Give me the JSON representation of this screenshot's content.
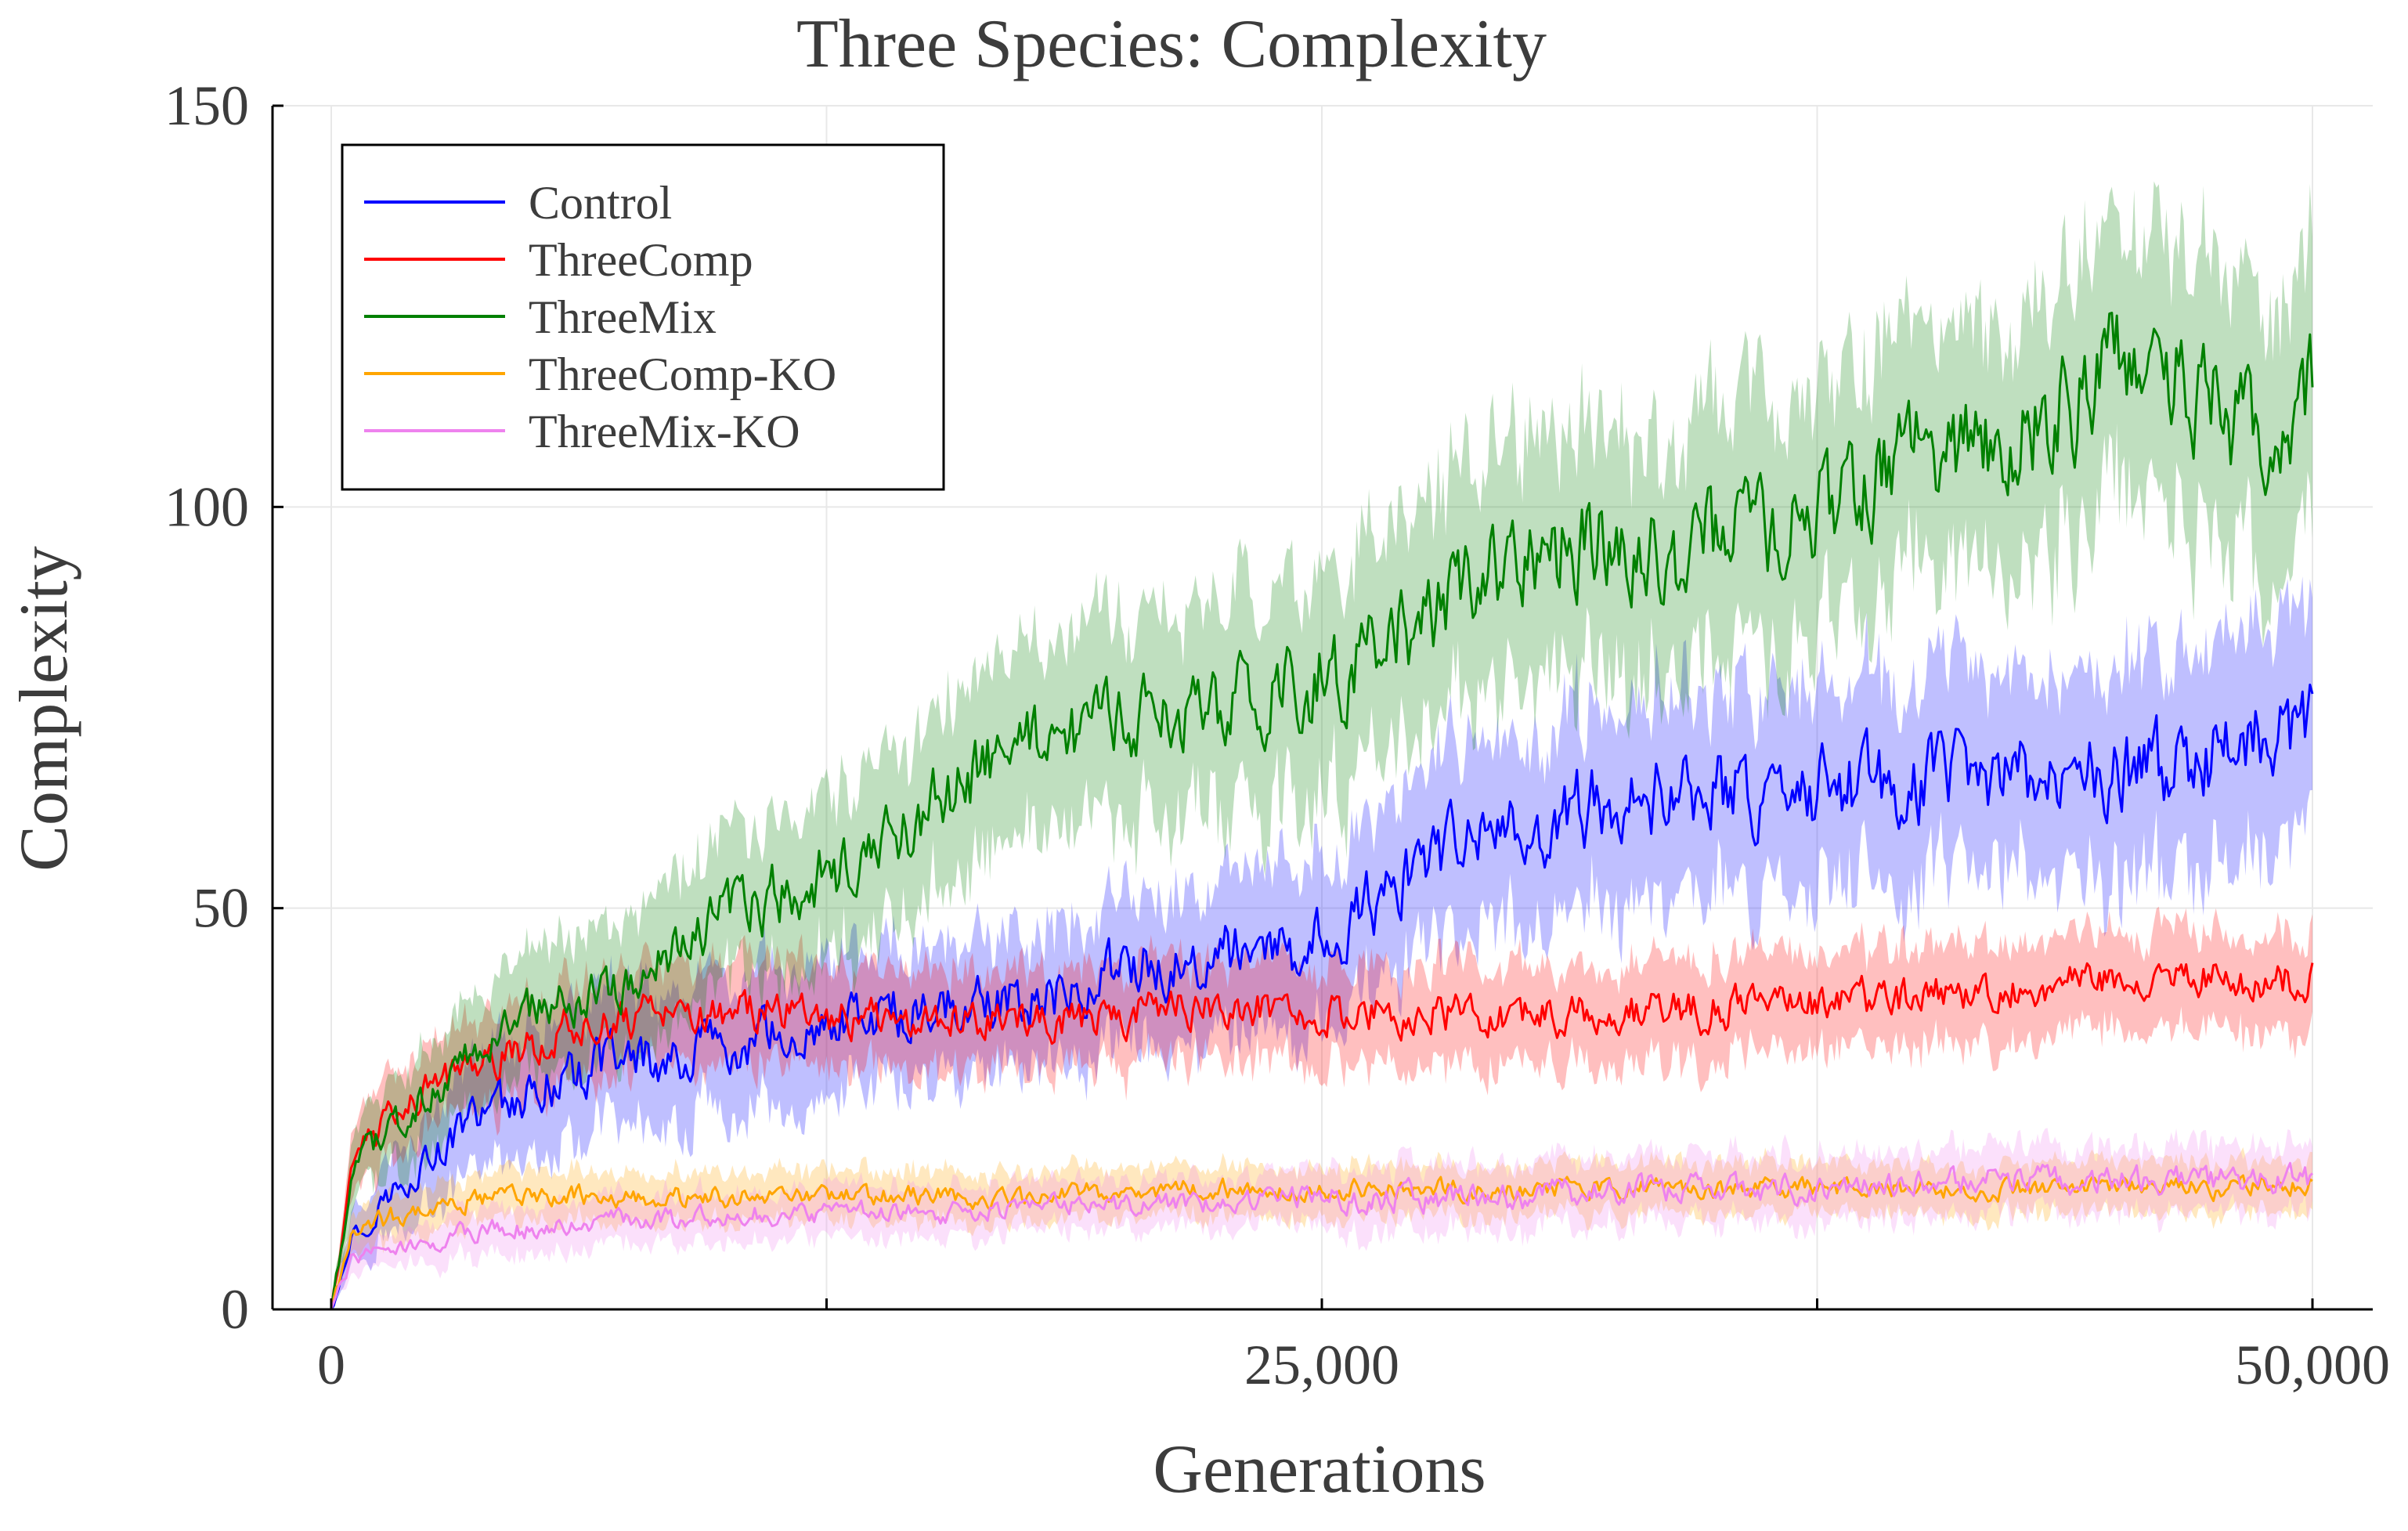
{
  "chart_data": {
    "type": "line",
    "title": "Three Species: Complexity",
    "xlabel": "Generations",
    "ylabel": "Complexity",
    "xlim": [
      0,
      50000
    ],
    "ylim": [
      0,
      150
    ],
    "x_ticks": [
      0,
      25000,
      50000
    ],
    "x_tick_labels": [
      "0",
      "25,000",
      "50,000"
    ],
    "x_minor_ticks": [
      12500,
      37500
    ],
    "y_ticks": [
      0,
      50,
      100,
      150
    ],
    "y_tick_labels": [
      "0",
      "50",
      "100",
      "150"
    ],
    "grid": true,
    "legend_position": "top-left",
    "series": [
      {
        "name": "Control",
        "color": "#0000ff",
        "x": [
          0,
          500,
          1000,
          2000,
          3000,
          4000,
          5000,
          6000,
          7000,
          8000,
          10000,
          12000,
          14000,
          16000,
          18000,
          20000,
          22000,
          24000,
          26000,
          28000,
          30000,
          32000,
          34000,
          36000,
          38000,
          40000,
          42000,
          44000,
          46000,
          48000,
          50000
        ],
        "mean": [
          0,
          9,
          12,
          17,
          21,
          25,
          27,
          29,
          30,
          31,
          33,
          35,
          37,
          38,
          39,
          42,
          44,
          44,
          50,
          56,
          60,
          63,
          64,
          65,
          65,
          66,
          66,
          67,
          67,
          70,
          72
        ],
        "band": [
          0,
          3,
          4,
          5,
          6,
          7,
          7,
          8,
          8,
          8,
          8,
          8,
          8,
          8,
          8,
          9,
          9,
          10,
          10,
          11,
          11,
          12,
          12,
          12,
          12,
          12,
          12,
          12,
          13,
          13,
          13
        ]
      },
      {
        "name": "ThreeComp",
        "color": "#ff0000",
        "x": [
          0,
          500,
          1000,
          2000,
          3000,
          4000,
          5000,
          6000,
          7000,
          8000,
          10000,
          12000,
          14000,
          16000,
          18000,
          20000,
          22000,
          24000,
          26000,
          28000,
          30000,
          32000,
          34000,
          36000,
          38000,
          40000,
          42000,
          44000,
          46000,
          48000,
          50000
        ],
        "mean": [
          0,
          16,
          21,
          26,
          29,
          31,
          33,
          35,
          36,
          37,
          37,
          37,
          36,
          36,
          36,
          37,
          38,
          38,
          37,
          37,
          36,
          37,
          37,
          38,
          38,
          39,
          40,
          41,
          41,
          41,
          41
        ],
        "band": [
          0,
          4,
          5,
          5,
          5,
          6,
          6,
          6,
          6,
          6,
          6,
          6,
          6,
          6,
          6,
          6,
          6,
          6,
          6,
          6,
          6,
          6,
          6,
          6,
          6,
          6,
          6,
          6,
          6,
          6,
          6
        ]
      },
      {
        "name": "ThreeMix",
        "color": "#008000",
        "x": [
          0,
          500,
          1000,
          2000,
          3000,
          4000,
          5000,
          6000,
          7000,
          8000,
          10000,
          12000,
          14000,
          16000,
          18000,
          20000,
          22000,
          24000,
          26000,
          28000,
          30000,
          32000,
          34000,
          36000,
          38000,
          40000,
          42000,
          44000,
          46000,
          48000,
          50000
        ],
        "mean": [
          0,
          15,
          20,
          25,
          29,
          33,
          37,
          38,
          39,
          42,
          49,
          53,
          58,
          66,
          71,
          73,
          75,
          77,
          81,
          87,
          93,
          97,
          94,
          97,
          101,
          106,
          108,
          114,
          120,
          110,
          115
        ],
        "band": [
          0,
          4,
          5,
          6,
          6,
          7,
          7,
          8,
          8,
          8,
          9,
          10,
          10,
          11,
          11,
          12,
          12,
          13,
          13,
          14,
          14,
          15,
          15,
          15,
          15,
          15,
          15,
          16,
          16,
          17,
          17
        ]
      },
      {
        "name": "ThreeComp-KO",
        "color": "#ffa500",
        "x": [
          0,
          500,
          1000,
          2000,
          3000,
          4000,
          5000,
          6000,
          7000,
          8000,
          10000,
          12000,
          14000,
          16000,
          18000,
          20000,
          22000,
          24000,
          26000,
          28000,
          30000,
          32000,
          34000,
          36000,
          38000,
          40000,
          42000,
          44000,
          46000,
          48000,
          50000
        ],
        "mean": [
          0,
          9,
          11,
          12,
          13,
          14,
          14,
          14,
          14,
          14,
          14,
          14,
          14,
          14,
          14,
          15,
          15,
          15,
          15,
          15,
          15,
          15,
          15,
          15,
          15,
          15,
          15,
          15,
          15,
          15,
          16
        ],
        "band": [
          0,
          2,
          3,
          3,
          3,
          3,
          3,
          3,
          3,
          3,
          3,
          3,
          3,
          3,
          3,
          3,
          3,
          3,
          3,
          3,
          3,
          3,
          3,
          3,
          3,
          3,
          3,
          3,
          3,
          3,
          3
        ]
      },
      {
        "name": "ThreeMix-KO",
        "color": "#ee82ee",
        "x": [
          0,
          500,
          1000,
          2000,
          3000,
          4000,
          5000,
          6000,
          7000,
          8000,
          10000,
          12000,
          14000,
          16000,
          18000,
          20000,
          22000,
          24000,
          26000,
          28000,
          30000,
          32000,
          34000,
          36000,
          38000,
          40000,
          42000,
          44000,
          46000,
          48000,
          50000
        ],
        "mean": [
          0,
          6,
          7,
          8,
          9,
          10,
          10,
          11,
          11,
          11,
          12,
          12,
          12,
          12,
          13,
          13,
          13,
          14,
          14,
          14,
          14,
          15,
          15,
          15,
          15,
          16,
          16,
          16,
          16,
          16,
          16
        ],
        "band": [
          0,
          2,
          2,
          2,
          3,
          3,
          3,
          3,
          3,
          3,
          3,
          3,
          3,
          3,
          3,
          3,
          3,
          3,
          4,
          4,
          4,
          4,
          4,
          4,
          4,
          4,
          4,
          4,
          4,
          4,
          4
        ]
      }
    ]
  }
}
